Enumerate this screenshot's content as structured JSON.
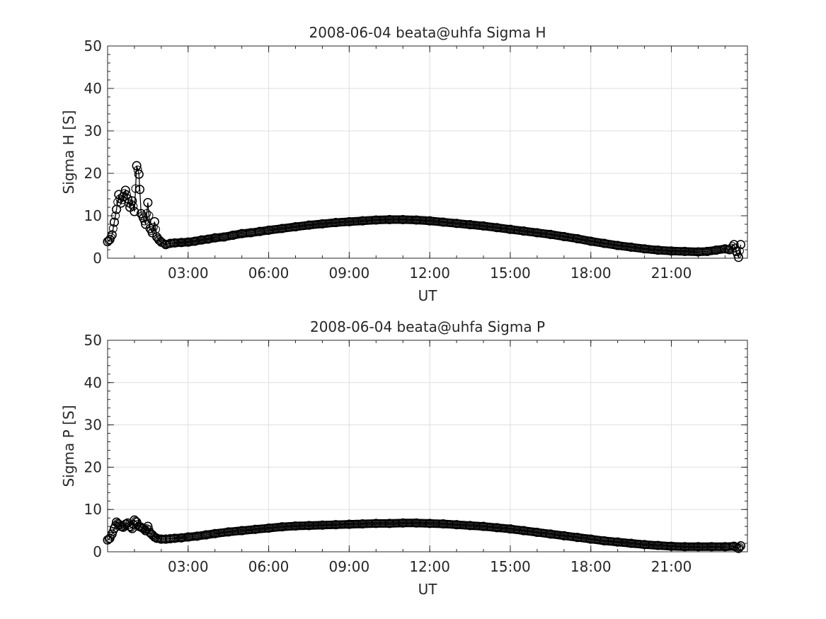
{
  "chart_data": [
    {
      "type": "scatter",
      "title": "2008-06-04  beata@uhfa Sigma H",
      "xlabel": "UT",
      "ylabel": "Sigma H [S]",
      "xlim": [
        "00:00",
        "23:50"
      ],
      "ylim": [
        0,
        50
      ],
      "yticks": [
        0,
        10,
        20,
        30,
        40,
        50
      ],
      "xticks": [
        "03:00",
        "06:00",
        "09:00",
        "12:00",
        "15:00",
        "18:00",
        "21:00"
      ],
      "grid": true,
      "marker": "open-circle",
      "series": [
        {
          "x": [
            "00:00",
            "00:05",
            "00:10",
            "00:15",
            "00:20",
            "00:25",
            "00:30",
            "00:35",
            "00:40",
            "00:45",
            "00:50",
            "00:55",
            "01:00",
            "01:05",
            "01:10",
            "01:12",
            "01:15",
            "01:20",
            "01:25",
            "01:30",
            "01:35",
            "01:40",
            "01:45",
            "01:50",
            "01:55",
            "02:00",
            "02:10",
            "02:20",
            "02:30",
            "02:45",
            "03:00",
            "03:15",
            "03:30",
            "03:45",
            "04:00",
            "04:20",
            "04:40",
            "05:00",
            "05:20",
            "05:40",
            "06:00",
            "06:30",
            "07:00",
            "07:30",
            "08:00",
            "08:30",
            "09:00",
            "09:30",
            "10:00",
            "10:30",
            "11:00",
            "11:30",
            "12:00",
            "12:30",
            "13:00",
            "13:30",
            "14:00",
            "14:30",
            "15:00",
            "15:30",
            "16:00",
            "16:30",
            "17:00",
            "17:30",
            "18:00",
            "18:30",
            "19:00",
            "19:30",
            "20:00",
            "20:30",
            "21:00",
            "21:30",
            "22:00",
            "22:20",
            "22:40",
            "23:00",
            "23:10",
            "23:20",
            "23:25",
            "23:30",
            "23:35"
          ],
          "y": [
            3.9,
            4.4,
            5.5,
            8.5,
            11.5,
            15.0,
            13.0,
            14.5,
            16.0,
            14.0,
            12.0,
            13.5,
            11.0,
            21.8,
            19.8,
            16.2,
            10.5,
            9.5,
            8.0,
            13.1,
            7.0,
            6.0,
            8.6,
            5.0,
            4.3,
            3.8,
            3.2,
            3.5,
            3.6,
            3.7,
            3.8,
            4.0,
            4.3,
            4.5,
            4.8,
            5.0,
            5.4,
            5.8,
            6.0,
            6.3,
            6.6,
            7.0,
            7.4,
            7.8,
            8.1,
            8.4,
            8.6,
            8.8,
            9.0,
            9.1,
            9.1,
            9.0,
            8.8,
            8.5,
            8.2,
            7.9,
            7.6,
            7.2,
            6.8,
            6.4,
            6.0,
            5.6,
            5.1,
            4.6,
            4.0,
            3.5,
            3.0,
            2.6,
            2.2,
            1.9,
            1.7,
            1.6,
            1.5,
            1.6,
            1.9,
            2.2,
            2.0,
            3.2,
            1.6,
            0.2,
            3.2
          ]
        }
      ]
    },
    {
      "type": "scatter",
      "title": "2008-06-04  beata@uhfa Sigma P",
      "xlabel": "UT",
      "ylabel": "Sigma P [S]",
      "xlim": [
        "00:00",
        "23:50"
      ],
      "ylim": [
        0,
        50
      ],
      "yticks": [
        0,
        10,
        20,
        30,
        40,
        50
      ],
      "xticks": [
        "03:00",
        "06:00",
        "09:00",
        "12:00",
        "15:00",
        "18:00",
        "21:00"
      ],
      "grid": true,
      "marker": "open-circle",
      "series": [
        {
          "x": [
            "00:00",
            "00:05",
            "00:10",
            "00:15",
            "00:20",
            "00:25",
            "00:30",
            "00:35",
            "00:40",
            "00:45",
            "00:50",
            "00:55",
            "01:00",
            "01:05",
            "01:10",
            "01:15",
            "01:20",
            "01:25",
            "01:30",
            "01:35",
            "01:40",
            "01:45",
            "01:50",
            "02:00",
            "02:10",
            "02:20",
            "02:30",
            "02:45",
            "03:00",
            "03:20",
            "03:40",
            "04:00",
            "04:30",
            "05:00",
            "05:30",
            "06:00",
            "06:30",
            "07:00",
            "07:30",
            "08:00",
            "08:30",
            "09:00",
            "09:30",
            "10:00",
            "10:30",
            "11:00",
            "11:30",
            "12:00",
            "12:30",
            "13:00",
            "13:30",
            "14:00",
            "14:30",
            "15:00",
            "15:30",
            "16:00",
            "16:30",
            "17:00",
            "17:30",
            "18:00",
            "18:30",
            "19:00",
            "19:30",
            "20:00",
            "20:30",
            "21:00",
            "21:30",
            "22:00",
            "22:30",
            "23:00",
            "23:20",
            "23:30",
            "23:35"
          ],
          "y": [
            2.8,
            3.2,
            4.2,
            5.5,
            7.0,
            6.5,
            6.0,
            5.8,
            6.5,
            6.8,
            6.0,
            5.5,
            7.5,
            7.0,
            6.0,
            5.8,
            5.5,
            5.0,
            6.0,
            4.5,
            4.0,
            3.5,
            3.2,
            3.0,
            3.0,
            3.1,
            3.2,
            3.3,
            3.5,
            3.7,
            4.0,
            4.3,
            4.7,
            5.0,
            5.3,
            5.6,
            5.9,
            6.1,
            6.2,
            6.3,
            6.4,
            6.5,
            6.6,
            6.7,
            6.7,
            6.8,
            6.8,
            6.7,
            6.6,
            6.4,
            6.2,
            6.0,
            5.7,
            5.4,
            5.0,
            4.6,
            4.2,
            3.8,
            3.4,
            3.0,
            2.6,
            2.3,
            2.0,
            1.7,
            1.5,
            1.3,
            1.2,
            1.2,
            1.2,
            1.2,
            1.3,
            0.8,
            1.4
          ]
        }
      ]
    }
  ]
}
